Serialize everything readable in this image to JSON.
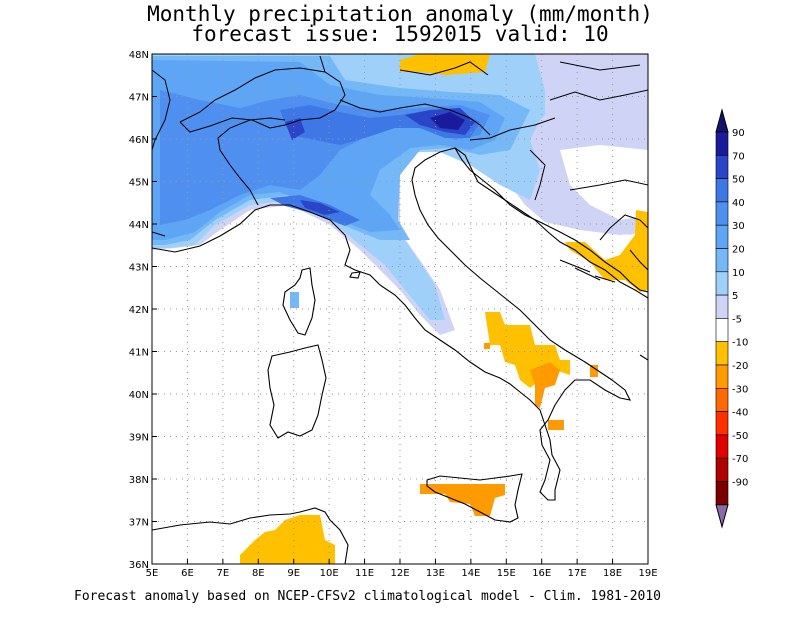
{
  "title_line1": "Monthly precipitation anomaly (mm/month)",
  "title_line2": "forecast issue: 1592015 valid: 10",
  "footer": "Forecast anomaly based on NCEP-CFSv2 climatological model - Clim. 1981-2010",
  "map": {
    "lon_range": [
      5,
      19
    ],
    "lat_range": [
      36,
      48
    ],
    "lon_labels": [
      "5E",
      "6E",
      "7E",
      "8E",
      "9E",
      "10E",
      "11E",
      "12E",
      "13E",
      "14E",
      "15E",
      "16E",
      "17E",
      "18E",
      "19E"
    ],
    "lat_labels": [
      "36N",
      "37N",
      "38N",
      "39N",
      "40N",
      "41N",
      "42N",
      "43N",
      "44N",
      "45N",
      "46N",
      "47N",
      "48N"
    ],
    "grid": "dotted"
  },
  "colorbar": {
    "labels": [
      "90",
      "70",
      "50",
      "40",
      "30",
      "20",
      "10",
      "5",
      "-5",
      "-10",
      "-20",
      "-30",
      "-40",
      "-50",
      "-70",
      "-90"
    ],
    "colors": [
      "#1a1a9c",
      "#2a45c8",
      "#3d78e6",
      "#4f8fef",
      "#5ea6f5",
      "#74b8f7",
      "#9fd0fa",
      "#cfd4f7",
      "#ffffff",
      "#ffc000",
      "#ff9a00",
      "#ff6a00",
      "#ff3000",
      "#e00000",
      "#b00000",
      "#7a0000"
    ],
    "top_arrow_color": "#14146e",
    "bottom_arrow_color": "#8a6aa8"
  }
}
